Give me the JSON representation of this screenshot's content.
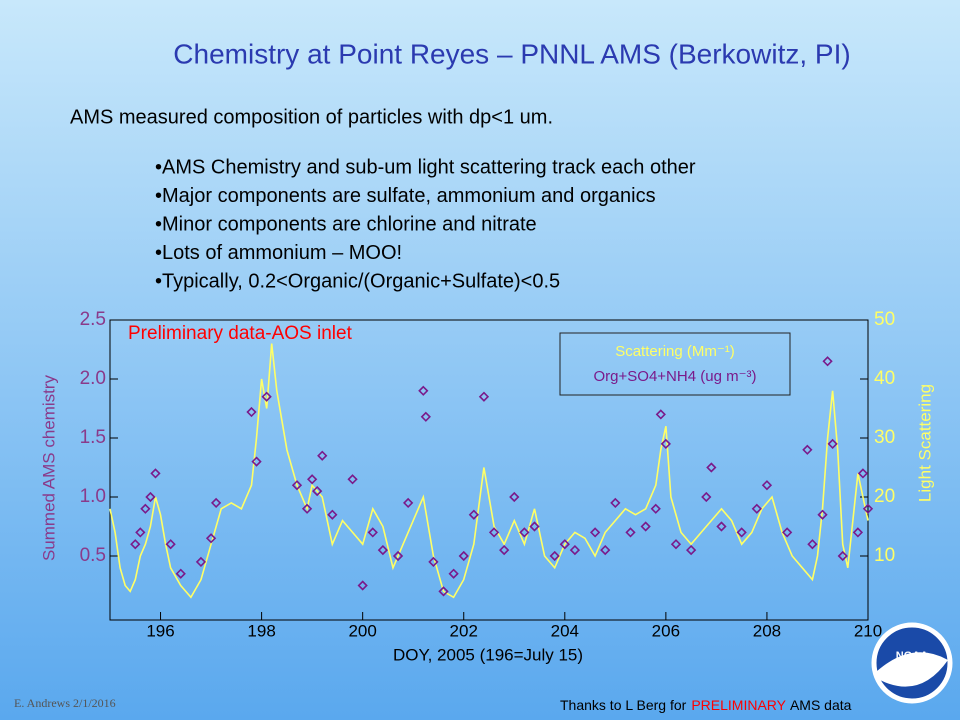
{
  "slide": {
    "title": "Chemistry at Point Reyes – PNNL AMS (Berkowitz, PI)",
    "subtitle": "AMS measured composition of particles with dp<1 um.",
    "bullets": [
      "•AMS Chemistry and sub-um light scattering track each other",
      "•Major components are sulfate, ammonium and organics",
      "•Minor components are chlorine and nitrate",
      "•Lots of ammonium – MOO!",
      "•Typically, 0.2<Organic/(Organic+Sulfate)<0.5"
    ],
    "author": "E. Andrews   2/1/2016",
    "credit": [
      "Thanks to L Berg for",
      "PRELIMINARY",
      "AMS data"
    ],
    "logo_text": "NOAA"
  },
  "chart_data": {
    "type": "line",
    "annotation": "Preliminary data-AOS inlet",
    "xlabel": "DOY, 2005 (196=July 15)",
    "ylabel": "Summed  AMS chemistry",
    "y2label": "Light Scattering",
    "xlim": [
      195,
      210
    ],
    "xticks": [
      196,
      198,
      200,
      202,
      204,
      206,
      208,
      210
    ],
    "ylim": [
      0,
      2.5
    ],
    "yticks": [
      0.5,
      {
        "value": 1,
        "label": "1.0"
      },
      1.5,
      {
        "value": 2,
        "label": "2.0"
      },
      2.5
    ],
    "y2lim": [
      0,
      50
    ],
    "y2ticks": [
      10,
      20,
      30,
      40,
      50
    ],
    "series": [
      {
        "name": "Scattering (Mm⁻¹)",
        "color": "#ffff66",
        "axis": "y2",
        "mode": "line",
        "x": [
          195.0,
          195.1,
          195.2,
          195.3,
          195.4,
          195.5,
          195.6,
          195.7,
          195.8,
          195.9,
          196.0,
          196.1,
          196.2,
          196.4,
          196.6,
          196.8,
          197.0,
          197.2,
          197.4,
          197.6,
          197.8,
          197.9,
          198.0,
          198.1,
          198.2,
          198.3,
          198.5,
          198.7,
          198.9,
          199.0,
          199.2,
          199.4,
          199.6,
          199.8,
          200.0,
          200.2,
          200.4,
          200.6,
          200.8,
          201.0,
          201.2,
          201.4,
          201.6,
          201.8,
          202.0,
          202.2,
          202.4,
          202.6,
          202.8,
          203.0,
          203.2,
          203.4,
          203.6,
          203.8,
          204.0,
          204.2,
          204.4,
          204.6,
          204.8,
          205.0,
          205.2,
          205.4,
          205.6,
          205.8,
          205.9,
          206.0,
          206.1,
          206.3,
          206.5,
          206.7,
          206.9,
          207.1,
          207.3,
          207.5,
          207.7,
          207.9,
          208.1,
          208.3,
          208.5,
          208.7,
          208.9,
          209.0,
          209.1,
          209.2,
          209.3,
          209.4,
          209.5,
          209.6,
          209.8,
          210.0
        ],
        "values": [
          18,
          14,
          8,
          5,
          4,
          6,
          10,
          12,
          15,
          20,
          17,
          12,
          8,
          5,
          3,
          6,
          12,
          18,
          19,
          18,
          22,
          30,
          40,
          35,
          46,
          38,
          28,
          22,
          18,
          22,
          20,
          12,
          16,
          14,
          12,
          18,
          15,
          8,
          12,
          16,
          20,
          10,
          4,
          3,
          6,
          12,
          25,
          15,
          12,
          16,
          12,
          18,
          10,
          8,
          12,
          14,
          13,
          10,
          14,
          16,
          18,
          17,
          18,
          22,
          28,
          32,
          20,
          14,
          12,
          14,
          16,
          18,
          16,
          12,
          14,
          18,
          20,
          14,
          10,
          8,
          6,
          10,
          18,
          30,
          38,
          28,
          12,
          8,
          24,
          16
        ]
      },
      {
        "name": "Org+SO4+NH4  (ug m⁻³)",
        "color": "#7a1a8a",
        "axis": "y",
        "mode": "markers",
        "x": [
          195.5,
          195.6,
          195.7,
          195.8,
          195.9,
          196.2,
          196.4,
          196.8,
          197.0,
          197.1,
          197.8,
          197.9,
          198.1,
          198.7,
          198.9,
          199.0,
          199.1,
          199.2,
          199.4,
          199.8,
          200.0,
          200.2,
          200.4,
          200.7,
          200.9,
          201.2,
          201.25,
          201.4,
          201.6,
          201.8,
          202.0,
          202.2,
          202.4,
          202.6,
          202.8,
          203.0,
          203.2,
          203.4,
          203.8,
          204.0,
          204.2,
          204.6,
          204.8,
          205.0,
          205.3,
          205.6,
          205.8,
          205.9,
          206.0,
          206.2,
          206.5,
          206.8,
          206.9,
          207.1,
          207.5,
          207.8,
          208.0,
          208.4,
          208.8,
          208.9,
          209.1,
          209.2,
          209.3,
          209.5,
          209.8,
          209.9,
          210.0
        ],
        "values": [
          0.6,
          0.7,
          0.9,
          1.0,
          1.2,
          0.6,
          0.35,
          0.45,
          0.65,
          0.95,
          1.72,
          1.3,
          1.85,
          1.1,
          0.9,
          1.15,
          1.05,
          1.35,
          0.85,
          1.15,
          0.25,
          0.7,
          0.55,
          0.5,
          0.95,
          1.9,
          1.68,
          0.45,
          0.2,
          0.35,
          0.5,
          0.85,
          1.85,
          0.7,
          0.55,
          1.0,
          0.7,
          0.75,
          0.5,
          0.6,
          0.55,
          0.7,
          0.55,
          0.95,
          0.7,
          0.75,
          0.9,
          1.7,
          1.45,
          0.6,
          0.55,
          1.0,
          1.25,
          0.75,
          0.7,
          0.9,
          1.1,
          0.7,
          1.4,
          0.6,
          0.85,
          2.15,
          1.45,
          0.5,
          0.7,
          1.2,
          0.9
        ]
      }
    ]
  }
}
